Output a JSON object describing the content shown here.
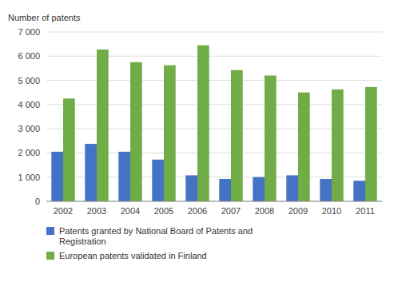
{
  "chart_data": {
    "type": "bar",
    "y_label": "Number of patents",
    "categories": [
      "2002",
      "2003",
      "2004",
      "2005",
      "2006",
      "2007",
      "2008",
      "2009",
      "2010",
      "2011"
    ],
    "series": [
      {
        "name": "Patents granted by National Board of Patents and\nRegistration",
        "color": "#4472C4",
        "values": [
          2050,
          2375,
          2050,
          1725,
          1075,
          925,
          1000,
          1075,
          925,
          850
        ]
      },
      {
        "name": "European patents validated in Finland",
        "color": "#70AD47",
        "values": [
          4250,
          6275,
          5750,
          5625,
          6450,
          5425,
          5200,
          4500,
          4625,
          4725
        ]
      }
    ],
    "ylim": [
      0,
      7000
    ],
    "yticks": [
      0,
      {
        "value": 1000,
        "label": "1 000"
      },
      {
        "value": 2000,
        "label": "2 000"
      },
      {
        "value": 3000,
        "label": "3 000"
      },
      {
        "value": 4000,
        "label": "4 000"
      },
      {
        "value": 5000,
        "label": "5 000"
      },
      {
        "value": 6000,
        "label": "6 000"
      },
      {
        "value": 7000,
        "label": "7 000"
      }
    ],
    "grid": true,
    "legend": "bottom"
  }
}
